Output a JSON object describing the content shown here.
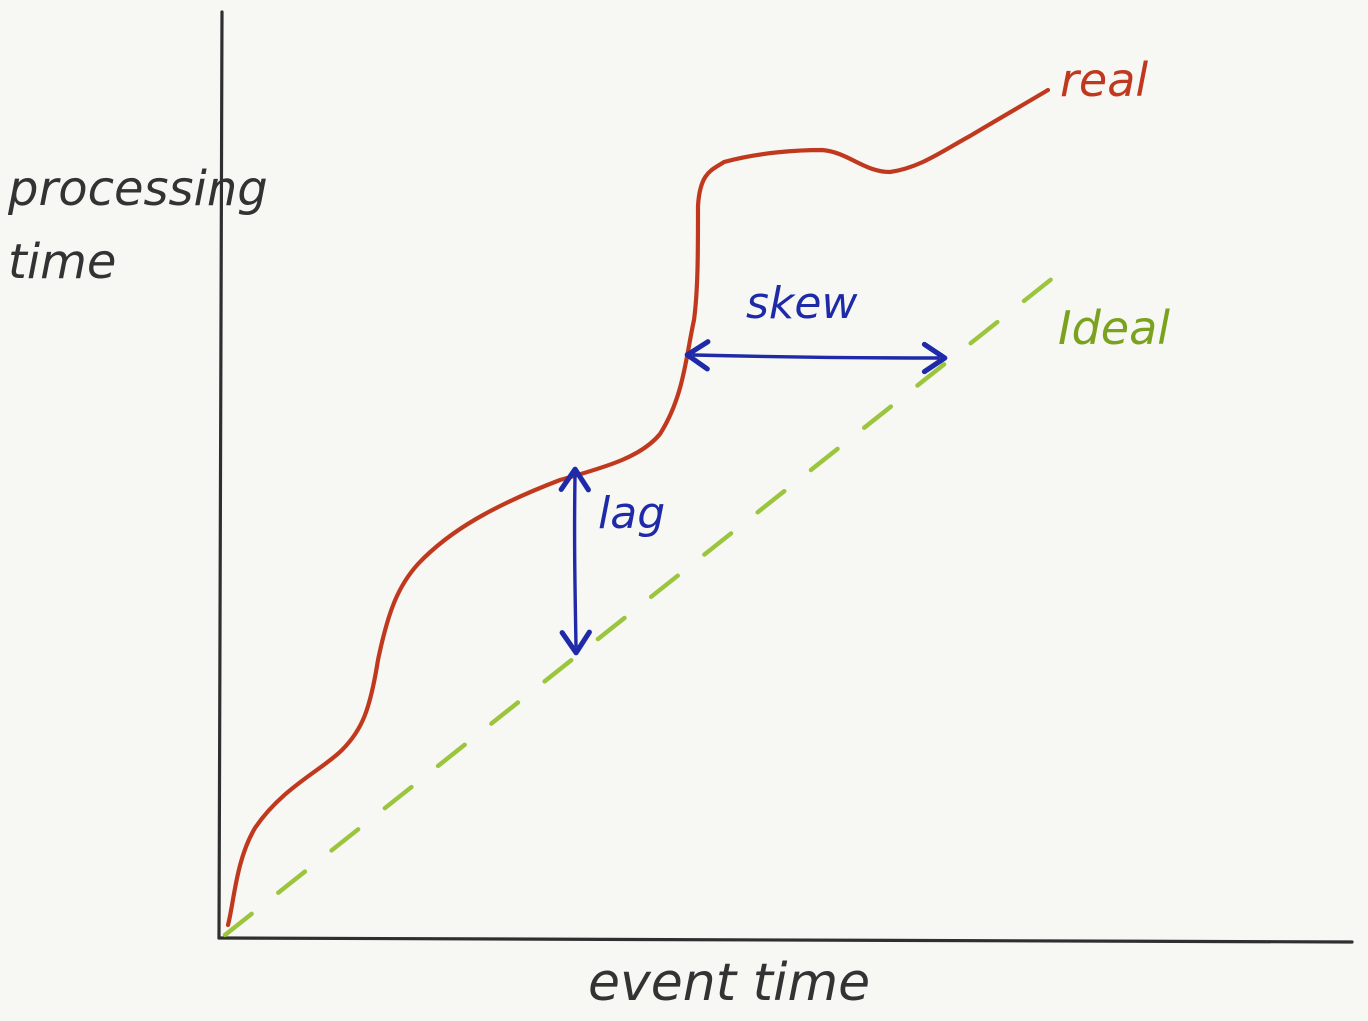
{
  "chart_data": {
    "type": "line",
    "title": "",
    "xlabel": "event time",
    "ylabel_lines": [
      "processing",
      "time"
    ],
    "grid": false,
    "series": [
      {
        "name": "real",
        "color": "#c0391e",
        "style": "solid"
      },
      {
        "name": "Ideal",
        "color": "#9bc53d",
        "style": "dashed"
      }
    ],
    "annotations": [
      {
        "text": "lag",
        "kind": "vertical-arrow",
        "color": "#1e2aa8"
      },
      {
        "text": "skew",
        "kind": "horizontal-arrow",
        "color": "#1e2aa8"
      }
    ]
  }
}
